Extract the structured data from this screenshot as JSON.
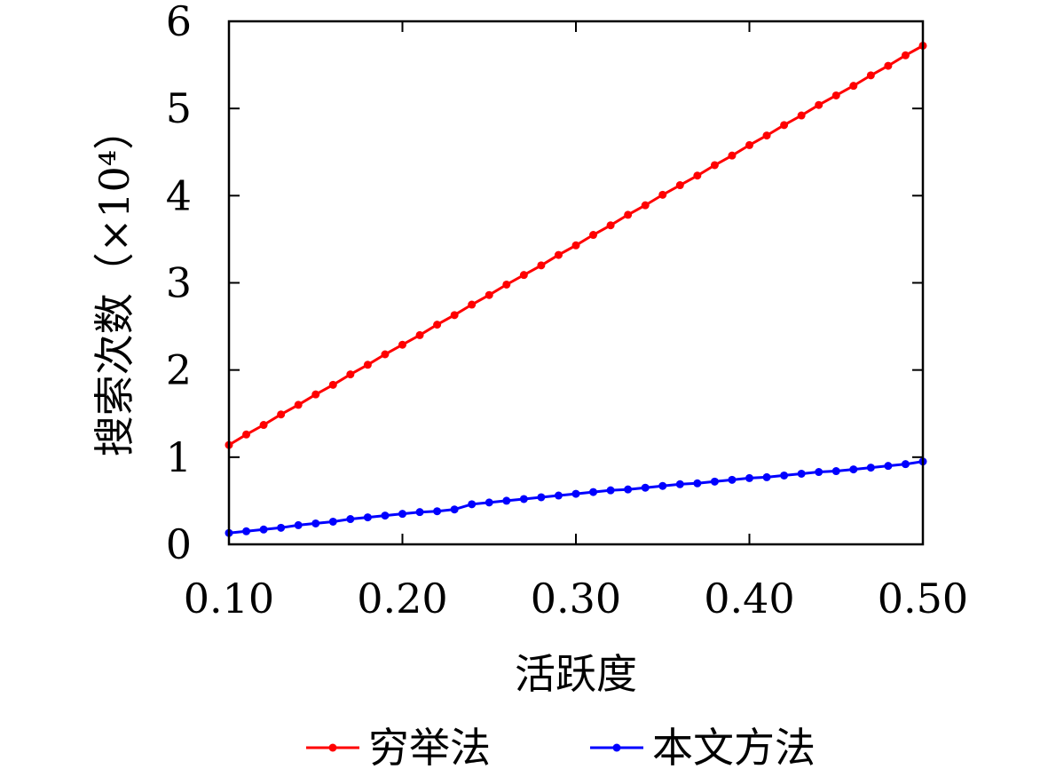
{
  "chart_data": {
    "type": "line",
    "xlabel": "活跃度",
    "ylabel": "搜索次数（×10⁴）",
    "xlim": [
      0.1,
      0.5
    ],
    "ylim": [
      0,
      6
    ],
    "x_ticks": [
      "0.10",
      "0.20",
      "0.30",
      "0.40",
      "0.50"
    ],
    "y_ticks": [
      "0",
      "1",
      "2",
      "3",
      "4",
      "5",
      "6"
    ],
    "x": [
      0.1,
      0.11,
      0.12,
      0.13,
      0.14,
      0.15,
      0.16,
      0.17,
      0.18,
      0.19,
      0.2,
      0.21,
      0.22,
      0.23,
      0.24,
      0.25,
      0.26,
      0.27,
      0.28,
      0.29,
      0.3,
      0.31,
      0.32,
      0.33,
      0.34,
      0.35,
      0.36,
      0.37,
      0.38,
      0.39,
      0.4,
      0.41,
      0.42,
      0.43,
      0.44,
      0.45,
      0.46,
      0.47,
      0.48,
      0.49,
      0.5
    ],
    "series": [
      {
        "name": "穷举法",
        "color": "#ff0000",
        "values": [
          1.14,
          1.26,
          1.37,
          1.49,
          1.6,
          1.72,
          1.83,
          1.95,
          2.06,
          2.18,
          2.29,
          2.4,
          2.52,
          2.63,
          2.75,
          2.86,
          2.98,
          3.09,
          3.2,
          3.32,
          3.43,
          3.55,
          3.66,
          3.78,
          3.89,
          4.01,
          4.12,
          4.23,
          4.35,
          4.46,
          4.58,
          4.69,
          4.81,
          4.92,
          5.04,
          5.15,
          5.26,
          5.38,
          5.49,
          5.61,
          5.72
        ]
      },
      {
        "name": "本文方法",
        "color": "#0000ff",
        "values": [
          0.13,
          0.15,
          0.17,
          0.19,
          0.22,
          0.24,
          0.26,
          0.29,
          0.31,
          0.33,
          0.35,
          0.37,
          0.38,
          0.4,
          0.46,
          0.48,
          0.5,
          0.52,
          0.54,
          0.56,
          0.58,
          0.6,
          0.62,
          0.63,
          0.65,
          0.67,
          0.69,
          0.7,
          0.72,
          0.74,
          0.76,
          0.77,
          0.79,
          0.81,
          0.83,
          0.84,
          0.86,
          0.88,
          0.9,
          0.92,
          0.95
        ]
      }
    ],
    "grid": false,
    "legend": "bottom"
  }
}
